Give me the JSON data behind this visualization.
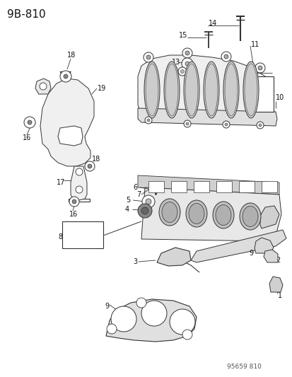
{
  "title": "9B-810",
  "watermark": "95659 810",
  "bg_color": "#ffffff",
  "lc": "#333333",
  "title_fontsize": 11,
  "label_fontsize": 7,
  "small_fontsize": 6.5
}
